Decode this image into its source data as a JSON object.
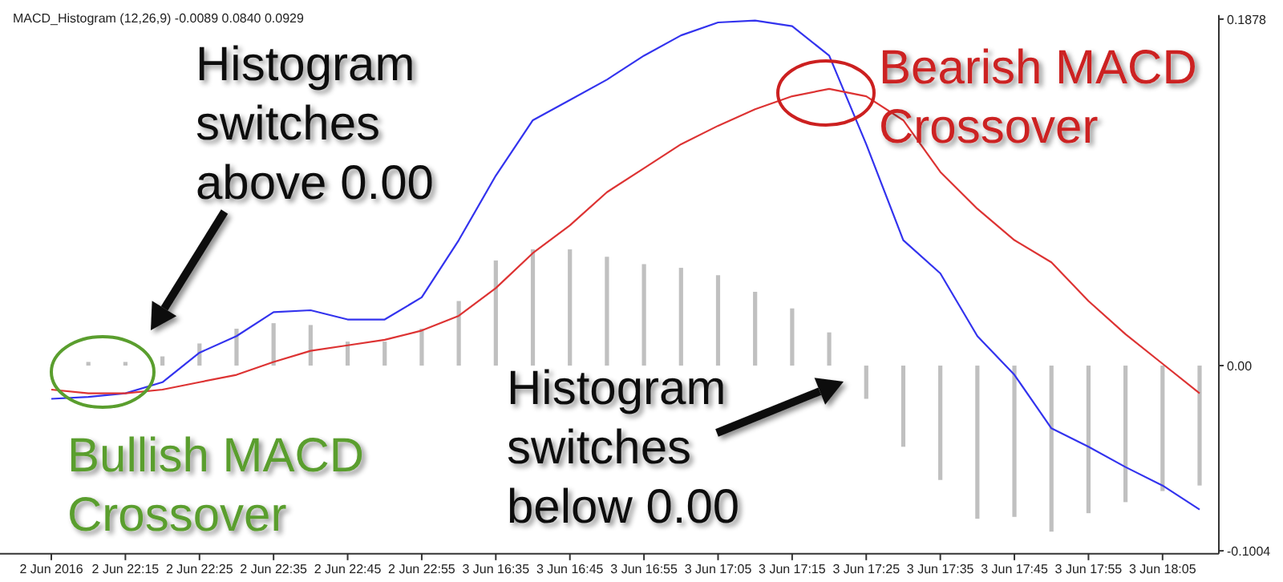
{
  "chart_data": {
    "type": "bar",
    "title": "MACD_Histogram (12,26,9) -0.0089 0.0840 0.0929",
    "categories": [
      "2 Jun 2016",
      null,
      "2 Jun 22:15",
      null,
      "2 Jun 22:25",
      null,
      "2 Jun 22:35",
      null,
      "2 Jun 22:45",
      null,
      "2 Jun 22:55",
      null,
      "3 Jun 16:35",
      null,
      "3 Jun 16:45",
      null,
      "3 Jun 16:55",
      null,
      "3 Jun 17:05",
      null,
      "3 Jun 17:15",
      null,
      "3 Jun 17:25",
      null,
      "3 Jun 17:35",
      null,
      "3 Jun 17:45",
      null,
      "3 Jun 17:55",
      null,
      "3 Jun 18:05",
      null
    ],
    "series": [
      {
        "color": "#c0c0c0",
        "values": [
          null,
          0.002,
          0.002,
          0.005,
          0.012,
          0.02,
          0.023,
          0.022,
          0.013,
          0.013,
          0.02,
          0.035,
          0.057,
          0.063,
          0.063,
          0.059,
          0.055,
          0.053,
          0.049,
          0.04,
          0.031,
          0.018,
          -0.018,
          -0.044,
          -0.062,
          -0.083,
          -0.082,
          -0.09,
          -0.08,
          -0.074,
          -0.068,
          -0.065
        ]
      },
      {
        "type": "line",
        "color": "#3333ee",
        "values": [
          -0.018,
          -0.017,
          -0.015,
          -0.009,
          0.007,
          0.016,
          0.029,
          0.03,
          0.025,
          0.025,
          0.037,
          0.068,
          0.103,
          0.133,
          0.144,
          0.155,
          0.168,
          0.179,
          0.186,
          0.187,
          0.184,
          0.168,
          0.12,
          0.068,
          0.05,
          0.016,
          -0.005,
          -0.034,
          -0.044,
          -0.055,
          -0.065,
          -0.078
        ]
      },
      {
        "type": "line",
        "color": "#dd3333",
        "values": [
          -0.013,
          -0.015,
          -0.015,
          -0.013,
          -0.009,
          -0.005,
          0.002,
          0.008,
          0.011,
          0.014,
          0.019,
          0.027,
          0.042,
          0.061,
          0.076,
          0.094,
          0.107,
          0.12,
          0.13,
          0.139,
          0.146,
          0.15,
          0.146,
          0.133,
          0.105,
          0.085,
          0.068,
          0.056,
          0.035,
          0.017,
          0.001,
          -0.015
        ]
      }
    ],
    "ylim": [
      -0.102,
      0.19
    ],
    "yticks": [
      0.1878,
      {
        "value": 0,
        "label": "0.00"
      },
      -0.1004
    ],
    "grid": false,
    "annotations": [
      "Histogram\nswitches\nabove 0.00",
      "Bullish MACD\nCrossover",
      "Bearish MACD\nCrossover",
      "Histogram\nswitches\nbelow 0.00"
    ]
  }
}
